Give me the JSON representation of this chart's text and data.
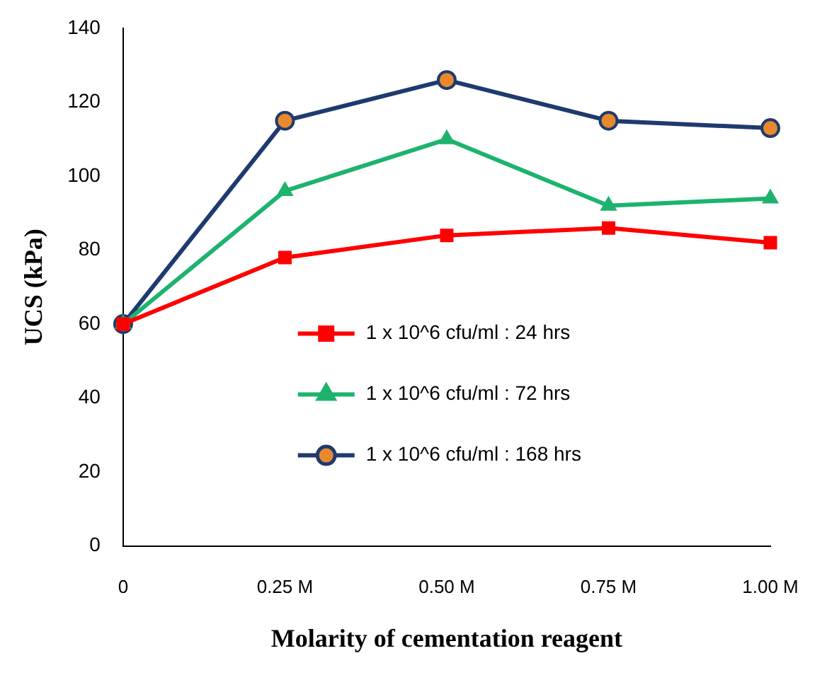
{
  "chart_data": {
    "type": "line",
    "xlabel": "Molarity of cementation reagent",
    "ylabel": "UCS (kPa)",
    "categories": [
      "0",
      "0.25 M",
      "0.50 M",
      "0.75 M",
      "1.00 M"
    ],
    "series": [
      {
        "name": "1 x 10^6 cfu/ml : 24 hrs",
        "color": "#ff0000",
        "marker": "square",
        "values": [
          60,
          78,
          84,
          86,
          82
        ]
      },
      {
        "name": "1 x 10^6 cfu/ml : 72 hrs",
        "color": "#1db36e",
        "marker": "triangle",
        "values": [
          60,
          96,
          110,
          92,
          94
        ]
      },
      {
        "name": "1 x 10^6 cfu/ml : 168 hrs",
        "color": "#1f3a6e",
        "marker": "circle",
        "values": [
          60,
          115,
          126,
          115,
          113
        ]
      }
    ],
    "ylim": [
      0,
      140
    ],
    "yticks": [
      0,
      20,
      40,
      60,
      80,
      100,
      120,
      140
    ],
    "grid": false,
    "legend": "bottom right",
    "line_style": "solid"
  }
}
